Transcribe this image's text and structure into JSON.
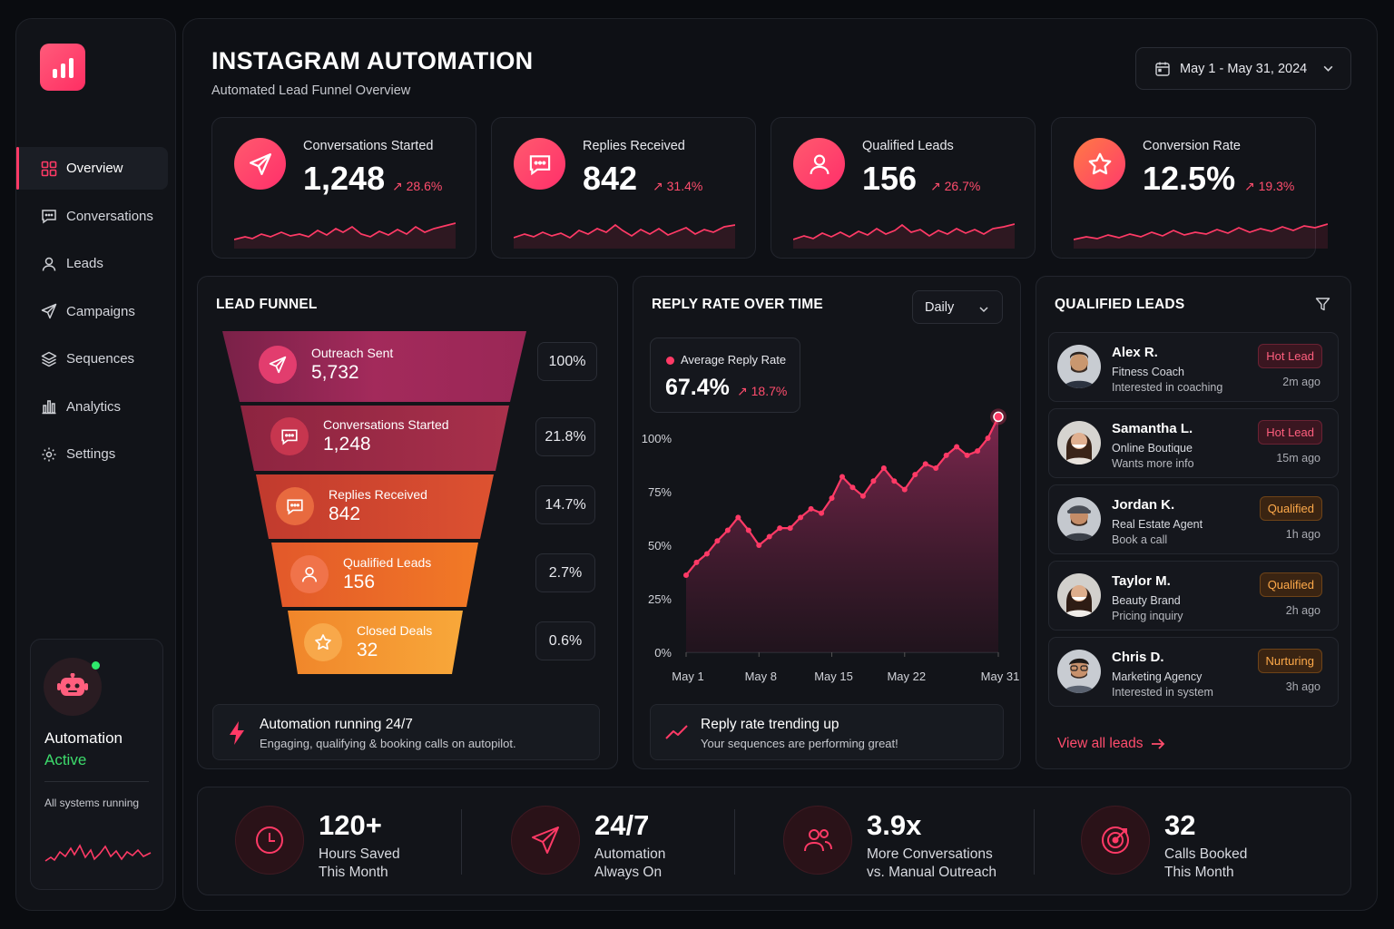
{
  "colors": {
    "accent": "#ff3a66",
    "active": "#3ddc6c",
    "hot": "#ff5f7e",
    "qualified": "#ffaa4a"
  },
  "sidebar": {
    "logo_icon": "bar-chart-icon",
    "items": [
      {
        "label": "Overview",
        "icon": "grid-icon",
        "active": true
      },
      {
        "label": "Conversations",
        "icon": "chat-icon"
      },
      {
        "label": "Leads",
        "icon": "user-icon"
      },
      {
        "label": "Campaigns",
        "icon": "send-icon"
      },
      {
        "label": "Sequences",
        "icon": "layers-icon"
      },
      {
        "label": "Analytics",
        "icon": "bar-chart-icon"
      },
      {
        "label": "Settings",
        "icon": "gear-icon"
      }
    ],
    "automation": {
      "title": "Automation",
      "status": "Active",
      "subtitle": "All systems running"
    }
  },
  "header": {
    "title": "INSTAGRAM AUTOMATION",
    "subtitle": "Automated Lead Funnel Overview",
    "date_range": "May 1 - May 31, 2024"
  },
  "stats": [
    {
      "label": "Conversations Started",
      "value": "1,248",
      "change": "28.6%",
      "icon": "send-icon"
    },
    {
      "label": "Replies Received",
      "value": "842",
      "change": "31.4%",
      "icon": "chat-icon"
    },
    {
      "label": "Qualified Leads",
      "value": "156",
      "change": "26.7%",
      "icon": "user-icon"
    },
    {
      "label": "Conversion Rate",
      "value": "12.5%",
      "change": "19.3%",
      "icon": "star-icon"
    }
  ],
  "funnel": {
    "title": "LEAD FUNNEL",
    "stages": [
      {
        "label": "Outreach Sent",
        "value": "5,732",
        "percent": "100%",
        "icon": "send-icon"
      },
      {
        "label": "Conversations Started",
        "value": "1,248",
        "percent": "21.8%",
        "icon": "chat-icon"
      },
      {
        "label": "Replies Received",
        "value": "842",
        "percent": "14.7%",
        "icon": "chat-icon"
      },
      {
        "label": "Qualified Leads",
        "value": "156",
        "percent": "2.7%",
        "icon": "user-icon"
      },
      {
        "label": "Closed Deals",
        "value": "32",
        "percent": "0.6%",
        "icon": "star-icon"
      }
    ],
    "note": {
      "title": "Automation running 24/7",
      "subtitle": "Engaging, qualifying & booking calls on autopilot."
    }
  },
  "reply_rate": {
    "title": "REPLY RATE OVER TIME",
    "interval": "Daily",
    "average_label": "Average Reply Rate",
    "average_value": "67.4%",
    "average_change": "18.7%",
    "note": {
      "title": "Reply rate trending up",
      "subtitle": "Your sequences are performing great!"
    }
  },
  "chart_data": {
    "type": "area",
    "title": "REPLY RATE OVER TIME",
    "xlabel": "",
    "ylabel": "",
    "ylim": [
      0,
      100
    ],
    "yticks": [
      "0%",
      "25%",
      "50%",
      "75%",
      "100%"
    ],
    "xticks": [
      {
        "label": "May 1",
        "day": 1
      },
      {
        "label": "May 8",
        "day": 8
      },
      {
        "label": "May 15",
        "day": 15
      },
      {
        "label": "May 22",
        "day": 22
      },
      {
        "label": "May 31",
        "day": 31
      }
    ],
    "x": [
      1,
      2,
      3,
      4,
      5,
      6,
      7,
      8,
      9,
      10,
      11,
      12,
      13,
      14,
      15,
      16,
      17,
      18,
      19,
      20,
      21,
      22,
      23,
      24,
      25,
      26,
      27,
      28,
      29,
      30,
      31
    ],
    "values": [
      36,
      42,
      46,
      52,
      57,
      63,
      57,
      50,
      54,
      58,
      58,
      63,
      67,
      65,
      72,
      82,
      77,
      73,
      80,
      86,
      80,
      76,
      83,
      88,
      86,
      92,
      96,
      92,
      94,
      100,
      110
    ]
  },
  "leads": {
    "title": "QUALIFIED LEADS",
    "view_all": "View all leads",
    "items": [
      {
        "name": "Alex R.",
        "role": "Fitness Coach",
        "info": "Interested in coaching",
        "badge": "Hot Lead",
        "badge_type": "hot",
        "time": "2m ago"
      },
      {
        "name": "Samantha L.",
        "role": "Online Boutique",
        "info": "Wants more info",
        "badge": "Hot Lead",
        "badge_type": "hot",
        "time": "15m ago"
      },
      {
        "name": "Jordan K.",
        "role": "Real Estate Agent",
        "info": "Book a call",
        "badge": "Qualified",
        "badge_type": "qual",
        "time": "1h ago"
      },
      {
        "name": "Taylor M.",
        "role": "Beauty Brand",
        "info": "Pricing inquiry",
        "badge": "Qualified",
        "badge_type": "qual",
        "time": "2h ago"
      },
      {
        "name": "Chris D.",
        "role": "Marketing Agency",
        "info": "Interested in system",
        "badge": "Nurturing",
        "badge_type": "qual",
        "time": "3h ago"
      }
    ]
  },
  "bottom": [
    {
      "value": "120+",
      "line1": "Hours Saved",
      "line2": "This Month",
      "icon": "clock-icon"
    },
    {
      "value": "24/7",
      "line1": "Automation",
      "line2": "Always On",
      "icon": "send-icon"
    },
    {
      "value": "3.9x",
      "line1": "More Conversations",
      "line2": "vs. Manual Outreach",
      "icon": "users-icon"
    },
    {
      "value": "32",
      "line1": "Calls Booked",
      "line2": "This Month",
      "icon": "target-icon"
    }
  ]
}
